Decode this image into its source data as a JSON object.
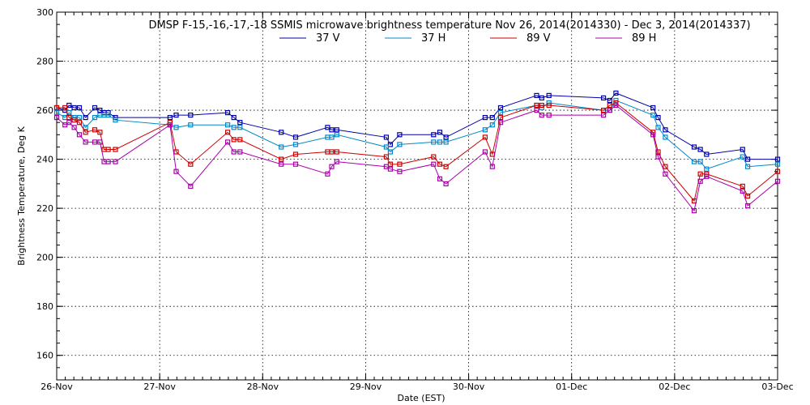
{
  "chart_data": {
    "type": "line",
    "title": "DMSP F-15,-16,-17,-18 SSMIS microwave brightness temperature Nov 26, 2014(2014330) - Dec  3, 2014(2014337)",
    "xlabel": "Date (EST)",
    "ylabel": "Brightness Temperature, Deg K",
    "xlim": [
      0,
      7
    ],
    "ylim": [
      150,
      300
    ],
    "yticks": [
      160,
      180,
      200,
      220,
      240,
      260,
      280,
      300
    ],
    "xticks": [
      {
        "x": 0,
        "label": "26-Nov"
      },
      {
        "x": 1,
        "label": "27-Nov"
      },
      {
        "x": 2,
        "label": "28-Nov"
      },
      {
        "x": 3,
        "label": "29-Nov"
      },
      {
        "x": 4,
        "label": "30-Nov"
      },
      {
        "x": 5,
        "label": "01-Dec"
      },
      {
        "x": 6,
        "label": "02-Dec"
      },
      {
        "x": 7,
        "label": "03-Dec"
      }
    ],
    "grid": true,
    "legend_position": "top-center",
    "series": [
      {
        "name": "37 V",
        "color": "#0000aa",
        "x": [
          0.0,
          0.08,
          0.12,
          0.17,
          0.22,
          0.28,
          0.37,
          0.42,
          0.46,
          0.5,
          0.57,
          1.1,
          1.16,
          1.3,
          1.66,
          1.72,
          1.78,
          2.18,
          2.32,
          2.63,
          2.67,
          2.72,
          3.2,
          3.24,
          3.33,
          3.66,
          3.72,
          3.78,
          4.16,
          4.23,
          4.31,
          4.66,
          4.71,
          4.78,
          5.31,
          5.37,
          5.43,
          5.79,
          5.84,
          5.91,
          6.19,
          6.25,
          6.31,
          6.66,
          6.71,
          7.0
        ],
        "values": [
          261,
          260,
          262,
          261,
          261,
          257,
          261,
          260,
          259,
          259,
          257,
          257,
          258,
          258,
          259,
          257,
          255,
          251,
          249,
          253,
          252,
          252,
          249,
          246,
          250,
          250,
          251,
          249,
          257,
          257,
          261,
          266,
          265,
          266,
          265,
          264,
          267,
          261,
          257,
          252,
          245,
          244,
          242,
          244,
          240,
          240
        ]
      },
      {
        "name": "37 H",
        "color": "#0088cc",
        "x": [
          0.0,
          0.08,
          0.12,
          0.17,
          0.22,
          0.28,
          0.37,
          0.42,
          0.46,
          0.5,
          0.57,
          1.1,
          1.16,
          1.3,
          1.66,
          1.72,
          1.78,
          2.18,
          2.32,
          2.63,
          2.67,
          2.72,
          3.2,
          3.24,
          3.33,
          3.66,
          3.72,
          3.78,
          4.16,
          4.23,
          4.31,
          4.66,
          4.71,
          4.78,
          5.31,
          5.37,
          5.43,
          5.79,
          5.84,
          5.91,
          6.19,
          6.25,
          6.31,
          6.66,
          6.71,
          7.0
        ],
        "values": [
          259,
          257,
          259,
          257,
          257,
          253,
          257,
          258,
          258,
          258,
          256,
          254,
          253,
          254,
          254,
          253,
          253,
          245,
          246,
          249,
          249,
          250,
          245,
          243,
          246,
          247,
          247,
          247,
          252,
          254,
          259,
          262,
          261,
          263,
          260,
          260,
          264,
          258,
          253,
          249,
          239,
          239,
          236,
          241,
          237,
          238
        ]
      },
      {
        "name": "89 V",
        "color": "#cc0000",
        "x": [
          0.0,
          0.08,
          0.12,
          0.17,
          0.22,
          0.28,
          0.37,
          0.42,
          0.46,
          0.5,
          0.57,
          1.1,
          1.16,
          1.3,
          1.66,
          1.72,
          1.78,
          2.18,
          2.32,
          2.63,
          2.67,
          2.72,
          3.2,
          3.24,
          3.33,
          3.66,
          3.72,
          3.78,
          4.16,
          4.23,
          4.31,
          4.66,
          4.71,
          4.78,
          5.31,
          5.37,
          5.43,
          5.79,
          5.84,
          5.91,
          6.19,
          6.25,
          6.31,
          6.66,
          6.71,
          7.0
        ],
        "values": [
          261,
          261,
          257,
          256,
          255,
          251,
          252,
          251,
          244,
          244,
          244,
          255,
          243,
          238,
          251,
          248,
          248,
          240,
          242,
          243,
          243,
          243,
          241,
          238,
          238,
          241,
          238,
          237,
          249,
          242,
          257,
          262,
          262,
          262,
          260,
          262,
          263,
          251,
          243,
          237,
          223,
          234,
          234,
          229,
          225,
          235
        ]
      },
      {
        "name": "89 H",
        "color": "#aa00aa",
        "x": [
          0.0,
          0.08,
          0.12,
          0.17,
          0.22,
          0.28,
          0.37,
          0.42,
          0.46,
          0.5,
          0.57,
          1.1,
          1.16,
          1.3,
          1.66,
          1.72,
          1.78,
          2.18,
          2.32,
          2.63,
          2.67,
          2.72,
          3.2,
          3.24,
          3.33,
          3.66,
          3.72,
          3.78,
          4.16,
          4.23,
          4.31,
          4.66,
          4.71,
          4.78,
          5.31,
          5.37,
          5.43,
          5.79,
          5.84,
          5.91,
          6.19,
          6.25,
          6.31,
          6.66,
          6.71,
          7.0
        ],
        "values": [
          257,
          254,
          255,
          253,
          250,
          247,
          247,
          247,
          239,
          239,
          239,
          254,
          235,
          229,
          247,
          243,
          243,
          238,
          238,
          234,
          237,
          239,
          237,
          236,
          235,
          238,
          232,
          230,
          243,
          237,
          255,
          260,
          258,
          258,
          258,
          260,
          262,
          250,
          241,
          234,
          219,
          231,
          233,
          227,
          221,
          231
        ]
      }
    ]
  }
}
